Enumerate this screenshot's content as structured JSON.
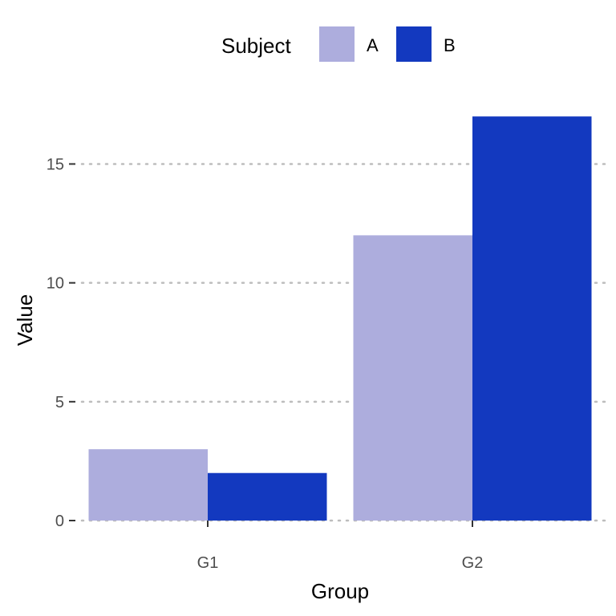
{
  "chart_data": {
    "type": "bar",
    "categories": [
      "G1",
      "G2"
    ],
    "series": [
      {
        "name": "A",
        "values": [
          3,
          12
        ],
        "color": "#ADADDD"
      },
      {
        "name": "B",
        "values": [
          2,
          17
        ],
        "color": "#1339BF"
      }
    ],
    "title": "",
    "xlabel": "Group",
    "ylabel": "Value",
    "ylim": [
      0,
      17.85
    ],
    "yticks": [
      0,
      5,
      10,
      15
    ],
    "legend": {
      "title": "Subject",
      "position": "top"
    },
    "grid": {
      "major_y": true,
      "style": "dotted"
    }
  }
}
